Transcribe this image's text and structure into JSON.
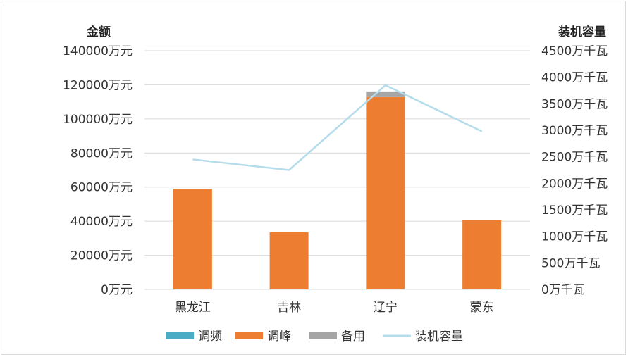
{
  "chart_data": {
    "type": "bar",
    "categories": [
      "黑龙江",
      "吉林",
      "辽宁",
      "蒙东"
    ],
    "series": [
      {
        "name": "调频",
        "type": "bar",
        "axis": "left",
        "stack": true,
        "values": [
          0,
          0,
          0,
          0
        ],
        "color": "#4bacc6"
      },
      {
        "name": "调峰",
        "type": "bar",
        "axis": "left",
        "stack": true,
        "values": [
          59000,
          33500,
          112800,
          40500
        ],
        "color": "#ed7d31"
      },
      {
        "name": "备用",
        "type": "bar",
        "axis": "left",
        "stack": true,
        "values": [
          0,
          0,
          3300,
          0
        ],
        "color": "#a5a5a5"
      },
      {
        "name": "装机容量",
        "type": "line",
        "axis": "right",
        "values": [
          2450,
          2250,
          3850,
          2980
        ],
        "color": "#b4dcea"
      }
    ],
    "left_axis": {
      "title": "金额",
      "range": [
        0,
        140000
      ],
      "ticks": [
        0,
        20000,
        40000,
        60000,
        80000,
        100000,
        120000,
        140000
      ],
      "unit": "万元"
    },
    "right_axis": {
      "title": "装机容量",
      "range": [
        0,
        4500
      ],
      "ticks": [
        0,
        500,
        1000,
        1500,
        2000,
        2500,
        3000,
        3500,
        4000,
        4500
      ],
      "unit": "万千瓦"
    },
    "grid": true,
    "legend_position": "bottom"
  }
}
